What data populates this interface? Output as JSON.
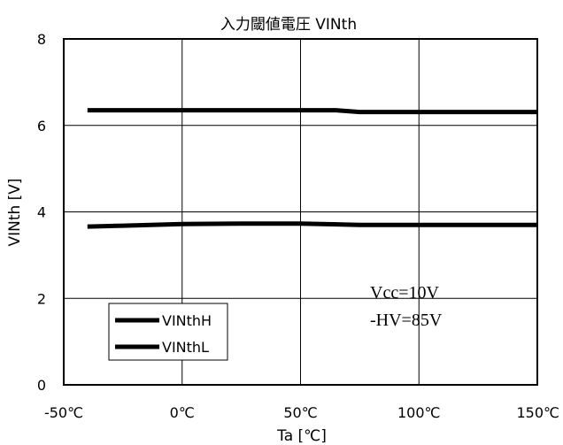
{
  "chart_data": {
    "type": "line",
    "title": "入力閾値電圧 VINth",
    "xlabel": "Ta [℃]",
    "ylabel": "VINth [V]",
    "xlim": [
      -50,
      150
    ],
    "ylim": [
      0,
      8
    ],
    "x_tick_labels": [
      "-50℃",
      "0℃",
      "50℃",
      "100℃",
      "150℃"
    ],
    "y_tick_labels": [
      "0",
      "2",
      "4",
      "6",
      "8"
    ],
    "x_ticks": [
      -50,
      0,
      50,
      100,
      150
    ],
    "y_ticks": [
      0,
      2,
      4,
      6,
      8
    ],
    "grid": true,
    "legend_position": "bottom-left",
    "series": [
      {
        "name": "VINthH",
        "color": "#000000",
        "x": [
          -40,
          -25,
          0,
          25,
          50,
          65,
          75,
          100,
          125,
          150
        ],
        "y": [
          6.35,
          6.35,
          6.35,
          6.35,
          6.35,
          6.35,
          6.31,
          6.31,
          6.31,
          6.31
        ]
      },
      {
        "name": "VINthL",
        "color": "#000000",
        "x": [
          -40,
          -25,
          0,
          25,
          50,
          75,
          100,
          125,
          150
        ],
        "y": [
          3.66,
          3.68,
          3.72,
          3.73,
          3.73,
          3.7,
          3.7,
          3.7,
          3.7
        ]
      }
    ],
    "annotations": [
      "Vcc=10V",
      "-HV=85V"
    ]
  }
}
